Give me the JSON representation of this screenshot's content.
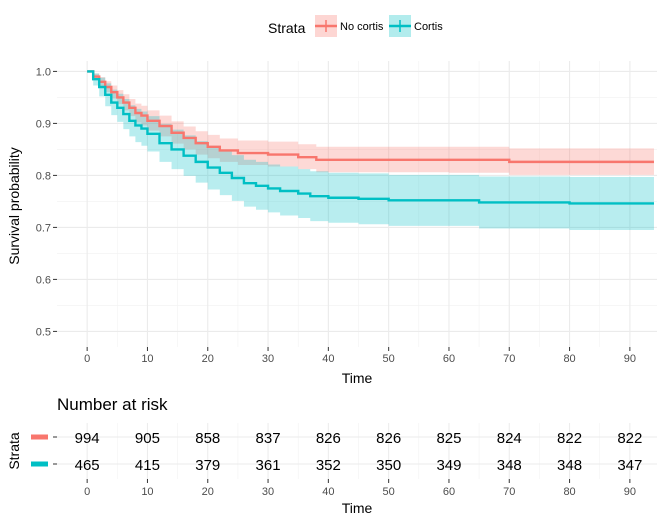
{
  "chart_data": {
    "type": "line",
    "subtype": "kaplan-meier",
    "xlabel": "Time",
    "ylabel": "Survival probability",
    "xlim": [
      -5,
      94.5
    ],
    "ylim": [
      0.47,
      1.02
    ],
    "x_ticks": [
      0,
      10,
      20,
      30,
      40,
      50,
      60,
      70,
      80,
      90
    ],
    "y_ticks": [
      0.5,
      0.6,
      0.7,
      0.8,
      0.9,
      1.0
    ],
    "y_tick_labels": [
      "0.5",
      "0.6",
      "0.7",
      "0.8",
      "0.9",
      "1.0"
    ],
    "grid": true,
    "legend": {
      "title": "Strata",
      "position": "top",
      "entries": [
        {
          "label": "No cortis",
          "color": "#F8766D"
        },
        {
          "label": "Cortis",
          "color": "#00BFC4"
        }
      ]
    },
    "series": [
      {
        "name": "No cortis",
        "color": "#F8766D",
        "fill": "#F8766D",
        "x": [
          0,
          1,
          2,
          3,
          4,
          5,
          6,
          7,
          8,
          9,
          10,
          12,
          14,
          16,
          18,
          20,
          22,
          25,
          30,
          35,
          38,
          45,
          60,
          70,
          94
        ],
        "y": [
          1.0,
          0.99,
          0.98,
          0.97,
          0.96,
          0.95,
          0.94,
          0.93,
          0.92,
          0.915,
          0.905,
          0.895,
          0.882,
          0.872,
          0.862,
          0.855,
          0.848,
          0.843,
          0.84,
          0.835,
          0.83,
          0.83,
          0.83,
          0.826,
          0.826
        ],
        "lower": [
          1.0,
          0.984,
          0.972,
          0.96,
          0.948,
          0.937,
          0.925,
          0.914,
          0.902,
          0.896,
          0.886,
          0.875,
          0.861,
          0.85,
          0.84,
          0.833,
          0.826,
          0.82,
          0.817,
          0.812,
          0.806,
          0.806,
          0.805,
          0.801,
          0.801
        ],
        "upper": [
          1.0,
          0.996,
          0.989,
          0.981,
          0.973,
          0.964,
          0.956,
          0.947,
          0.938,
          0.934,
          0.925,
          0.915,
          0.904,
          0.894,
          0.885,
          0.878,
          0.871,
          0.867,
          0.865,
          0.86,
          0.855,
          0.855,
          0.855,
          0.852,
          0.852
        ]
      },
      {
        "name": "Cortis",
        "color": "#00BFC4",
        "fill": "#00BFC4",
        "x": [
          0,
          1,
          2,
          3,
          4,
          5,
          6,
          7,
          8,
          9,
          10,
          12,
          14,
          16,
          18,
          20,
          22,
          24,
          26,
          28,
          30,
          32,
          35,
          37,
          40,
          45,
          50,
          65,
          80,
          94
        ],
        "y": [
          1.0,
          0.985,
          0.97,
          0.955,
          0.94,
          0.93,
          0.918,
          0.905,
          0.896,
          0.89,
          0.88,
          0.862,
          0.85,
          0.838,
          0.826,
          0.815,
          0.805,
          0.795,
          0.785,
          0.78,
          0.775,
          0.77,
          0.765,
          0.76,
          0.757,
          0.755,
          0.752,
          0.748,
          0.746,
          0.746
        ],
        "lower": [
          1.0,
          0.973,
          0.952,
          0.933,
          0.916,
          0.903,
          0.889,
          0.875,
          0.864,
          0.857,
          0.846,
          0.826,
          0.812,
          0.799,
          0.786,
          0.773,
          0.762,
          0.751,
          0.74,
          0.734,
          0.729,
          0.723,
          0.718,
          0.712,
          0.709,
          0.706,
          0.703,
          0.698,
          0.695,
          0.695
        ],
        "upper": [
          1.0,
          0.996,
          0.988,
          0.977,
          0.965,
          0.957,
          0.947,
          0.935,
          0.928,
          0.923,
          0.914,
          0.899,
          0.888,
          0.877,
          0.866,
          0.857,
          0.848,
          0.839,
          0.83,
          0.826,
          0.821,
          0.817,
          0.812,
          0.808,
          0.805,
          0.804,
          0.801,
          0.798,
          0.797,
          0.797
        ]
      }
    ],
    "risk_table": {
      "title": "Number at risk",
      "ylabel": "Strata",
      "xlabel": "Time",
      "times": [
        0,
        10,
        20,
        30,
        40,
        50,
        60,
        70,
        80,
        90
      ],
      "rows": [
        {
          "color": "#F8766D",
          "values": [
            "994",
            "905",
            "858",
            "837",
            "826",
            "826",
            "825",
            "824",
            "822",
            "822"
          ]
        },
        {
          "color": "#00BFC4",
          "values": [
            "465",
            "415",
            "379",
            "361",
            "352",
            "350",
            "349",
            "348",
            "348",
            "347"
          ]
        }
      ]
    }
  }
}
